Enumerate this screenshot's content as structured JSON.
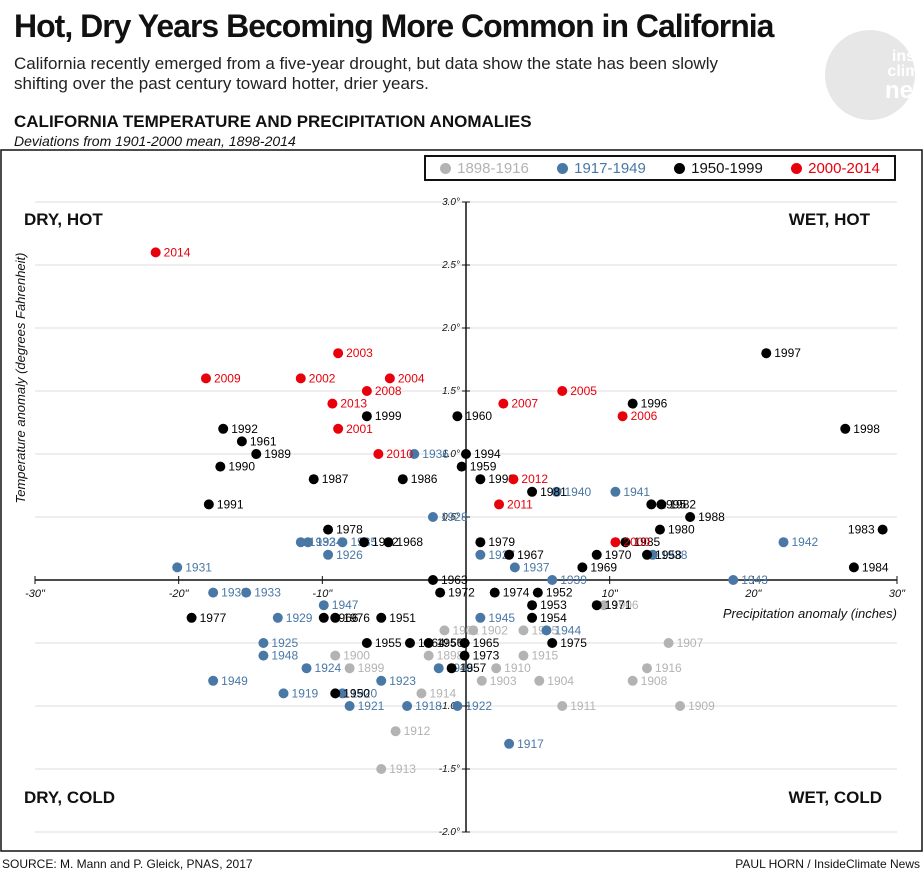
{
  "header": {
    "title": "Hot, Dry Years Becoming More Common in California",
    "subtitle": "California recently emerged from a five-year drought, but data show the state has been slowly shifting over the past century toward hotter, drier years.",
    "chart_title": "CALIFORNIA TEMPERATURE AND PRECIPITATION ANOMALIES",
    "chart_subtitle": "Deviations from 1901-2000 mean, 1898-2014"
  },
  "logo": {
    "line1": "inside",
    "line2": "climate",
    "line3": "news"
  },
  "footer": {
    "source": "SOURCE: M. Mann and P. Gleick, PNAS, 2017",
    "credit": "PAUL HORN / InsideClimate News"
  },
  "colors": {
    "1898-1916": "#b3b3b3",
    "1917-1949": "#4a78a6",
    "1950-1999": "#000000",
    "2000-2014": "#e8000b"
  },
  "chart_data": {
    "type": "scatter",
    "xlabel": "Precipitation anomaly (inches)",
    "ylabel": "Temperature anomaly (degrees Fahrenheit)",
    "xlim": [
      -30,
      30
    ],
    "ylim": [
      -2.0,
      3.0
    ],
    "x_ticks": [
      "-30\"",
      "-20\"",
      "-10\"",
      "10\"",
      "20\"",
      "30\""
    ],
    "y_ticks": [
      "3.0°",
      "2.5°",
      "2.0°",
      "1.5°",
      "1.0°",
      "0.5°",
      "-0.5°",
      "-1.0°",
      "-1.5°",
      "-2.0°"
    ],
    "grid": true,
    "legend_position": "top-right",
    "quadrants": {
      "top_left": "DRY, HOT",
      "top_right": "WET, HOT",
      "bottom_left": "DRY, COLD",
      "bottom_right": "WET, COLD"
    },
    "series": [
      {
        "name": "1898-1916",
        "points": [
          {
            "year": "1899",
            "x": -8.1,
            "y": -0.7
          },
          {
            "year": "1900",
            "x": -9.1,
            "y": -0.6
          },
          {
            "year": "1901",
            "x": -1.5,
            "y": -0.4
          },
          {
            "year": "1902",
            "x": 0.5,
            "y": -0.4
          },
          {
            "year": "1903",
            "x": 1.1,
            "y": -0.8
          },
          {
            "year": "1904",
            "x": 5.1,
            "y": -0.8
          },
          {
            "year": "1905",
            "x": 4.0,
            "y": -0.4
          },
          {
            "year": "1906",
            "x": 9.6,
            "y": -0.2
          },
          {
            "year": "1907",
            "x": 14.1,
            "y": -0.5
          },
          {
            "year": "1908",
            "x": 11.6,
            "y": -0.8
          },
          {
            "year": "1909",
            "x": 14.9,
            "y": -1.0
          },
          {
            "year": "1910",
            "x": 2.1,
            "y": -0.7
          },
          {
            "year": "1911",
            "x": 6.7,
            "y": -1.0
          },
          {
            "year": "1912",
            "x": -4.9,
            "y": -1.2
          },
          {
            "year": "1913",
            "x": -5.9,
            "y": -1.5
          },
          {
            "year": "1914",
            "x": -3.1,
            "y": -0.9
          },
          {
            "year": "1915",
            "x": 4.0,
            "y": -0.6
          },
          {
            "year": "1916",
            "x": 12.6,
            "y": -0.7
          },
          {
            "year": "1898",
            "x": -2.6,
            "y": -0.6
          }
        ]
      },
      {
        "name": "1917-1949",
        "points": [
          {
            "year": "1917",
            "x": 3.0,
            "y": -1.3
          },
          {
            "year": "1918",
            "x": -4.1,
            "y": -1.0
          },
          {
            "year": "1919",
            "x": -12.7,
            "y": -0.9
          },
          {
            "year": "1920",
            "x": -8.6,
            "y": -0.9
          },
          {
            "year": "1921",
            "x": -8.1,
            "y": -1.0
          },
          {
            "year": "1922",
            "x": -0.6,
            "y": -1.0
          },
          {
            "year": "1923",
            "x": -5.9,
            "y": -0.8
          },
          {
            "year": "1924",
            "x": -11.1,
            "y": -0.7
          },
          {
            "year": "1925",
            "x": -14.1,
            "y": -0.5
          },
          {
            "year": "1926",
            "x": -9.6,
            "y": 0.2
          },
          {
            "year": "1927",
            "x": 1.0,
            "y": 0.2
          },
          {
            "year": "1928",
            "x": -2.3,
            "y": 0.5
          },
          {
            "year": "1929",
            "x": -13.1,
            "y": -0.3
          },
          {
            "year": "1930",
            "x": -17.6,
            "y": -0.1
          },
          {
            "year": "1931",
            "x": -20.1,
            "y": 0.1
          },
          {
            "year": "1932",
            "x": -11.5,
            "y": 0.3
          },
          {
            "year": "1933",
            "x": -15.3,
            "y": -0.1
          },
          {
            "year": "1934",
            "x": -11.0,
            "y": 0.3
          },
          {
            "year": "1935",
            "x": -8.6,
            "y": 0.3
          },
          {
            "year": "1936",
            "x": -3.6,
            "y": 1.0
          },
          {
            "year": "1937",
            "x": 3.4,
            "y": 0.1
          },
          {
            "year": "1938",
            "x": 13.0,
            "y": 0.2
          },
          {
            "year": "1939",
            "x": 6.0,
            "y": 0.0
          },
          {
            "year": "1940",
            "x": 6.3,
            "y": 0.7
          },
          {
            "year": "1941",
            "x": 10.4,
            "y": 0.7
          },
          {
            "year": "1942",
            "x": 22.1,
            "y": 0.3
          },
          {
            "year": "1943",
            "x": 18.6,
            "y": 0.0
          },
          {
            "year": "1944",
            "x": 5.6,
            "y": -0.4
          },
          {
            "year": "1945",
            "x": 1.0,
            "y": -0.3
          },
          {
            "year": "1946",
            "x": -1.9,
            "y": -0.7
          },
          {
            "year": "1947",
            "x": -9.9,
            "y": -0.2
          },
          {
            "year": "1948",
            "x": -14.1,
            "y": -0.6
          },
          {
            "year": "1949",
            "x": -17.6,
            "y": -0.8
          }
        ]
      },
      {
        "name": "1950-1999",
        "points": [
          {
            "year": "1950",
            "x": -9.1,
            "y": -0.9
          },
          {
            "year": "1951",
            "x": -5.9,
            "y": -0.3
          },
          {
            "year": "1952",
            "x": 5.0,
            "y": -0.1
          },
          {
            "year": "1953",
            "x": 4.6,
            "y": -0.2
          },
          {
            "year": "1954",
            "x": 4.6,
            "y": -0.3
          },
          {
            "year": "1955",
            "x": -6.9,
            "y": -0.5
          },
          {
            "year": "1956",
            "x": -2.6,
            "y": -0.5
          },
          {
            "year": "1957",
            "x": -1.0,
            "y": -0.7
          },
          {
            "year": "1958",
            "x": 12.6,
            "y": 0.2
          },
          {
            "year": "1959",
            "x": -0.3,
            "y": 0.9
          },
          {
            "year": "1960",
            "x": -0.6,
            "y": 1.3
          },
          {
            "year": "1961",
            "x": -15.6,
            "y": 1.1
          },
          {
            "year": "1962",
            "x": -7.1,
            "y": 0.3
          },
          {
            "year": "1963",
            "x": -2.3,
            "y": 0.0
          },
          {
            "year": "1964",
            "x": -3.9,
            "y": -0.5
          },
          {
            "year": "1965",
            "x": -0.1,
            "y": -0.5
          },
          {
            "year": "1966",
            "x": -9.9,
            "y": -0.3
          },
          {
            "year": "1967",
            "x": 3.0,
            "y": 0.2
          },
          {
            "year": "1968",
            "x": -5.4,
            "y": 0.3
          },
          {
            "year": "1969",
            "x": 8.1,
            "y": 0.1
          },
          {
            "year": "1970",
            "x": 9.1,
            "y": 0.2
          },
          {
            "year": "1971",
            "x": 9.1,
            "y": -0.2
          },
          {
            "year": "1972",
            "x": -1.8,
            "y": -0.1
          },
          {
            "year": "1973",
            "x": -0.1,
            "y": -0.6
          },
          {
            "year": "1974",
            "x": 2.0,
            "y": -0.1
          },
          {
            "year": "1975",
            "x": 6.0,
            "y": -0.5
          },
          {
            "year": "1976",
            "x": -9.1,
            "y": -0.3
          },
          {
            "year": "1977",
            "x": -19.1,
            "y": -0.3
          },
          {
            "year": "1978",
            "x": -9.6,
            "y": 0.4
          },
          {
            "year": "1979",
            "x": 1.0,
            "y": 0.3
          },
          {
            "year": "1980",
            "x": 13.5,
            "y": 0.4
          },
          {
            "year": "1981",
            "x": 4.6,
            "y": 0.7
          },
          {
            "year": "1982",
            "x": 13.6,
            "y": 0.6
          },
          {
            "year": "1983",
            "x": 29.0,
            "y": 0.4
          },
          {
            "year": "1984",
            "x": 27.0,
            "y": 0.1
          },
          {
            "year": "1985",
            "x": 11.1,
            "y": 0.3
          },
          {
            "year": "1986",
            "x": -4.4,
            "y": 0.8
          },
          {
            "year": "1987",
            "x": -10.6,
            "y": 0.8
          },
          {
            "year": "1988",
            "x": 15.6,
            "y": 0.5
          },
          {
            "year": "1989",
            "x": -14.6,
            "y": 1.0
          },
          {
            "year": "1990",
            "x": -17.1,
            "y": 0.9
          },
          {
            "year": "1991",
            "x": -17.9,
            "y": 0.6
          },
          {
            "year": "1992",
            "x": -16.9,
            "y": 1.2
          },
          {
            "year": "1993",
            "x": 1.0,
            "y": 0.8
          },
          {
            "year": "1994",
            "x": 0.0,
            "y": 1.0
          },
          {
            "year": "1995",
            "x": 12.9,
            "y": 0.6
          },
          {
            "year": "1996",
            "x": 11.6,
            "y": 1.4
          },
          {
            "year": "1997",
            "x": 20.9,
            "y": 1.8
          },
          {
            "year": "1998",
            "x": 26.4,
            "y": 1.2
          },
          {
            "year": "1999",
            "x": -6.9,
            "y": 1.3
          }
        ]
      },
      {
        "name": "2000-2014",
        "points": [
          {
            "year": "2000",
            "x": 10.4,
            "y": 0.3
          },
          {
            "year": "2001",
            "x": -8.9,
            "y": 1.2
          },
          {
            "year": "2002",
            "x": -11.5,
            "y": 1.6
          },
          {
            "year": "2003",
            "x": -8.9,
            "y": 1.8
          },
          {
            "year": "2004",
            "x": -5.3,
            "y": 1.6
          },
          {
            "year": "2005",
            "x": 6.7,
            "y": 1.5
          },
          {
            "year": "2006",
            "x": 10.9,
            "y": 1.3
          },
          {
            "year": "2007",
            "x": 2.6,
            "y": 1.4
          },
          {
            "year": "2008",
            "x": -6.9,
            "y": 1.5
          },
          {
            "year": "2009",
            "x": -18.1,
            "y": 1.6
          },
          {
            "year": "2010",
            "x": -6.1,
            "y": 1.0
          },
          {
            "year": "2011",
            "x": 2.3,
            "y": 0.6
          },
          {
            "year": "2012",
            "x": 3.3,
            "y": 0.8
          },
          {
            "year": "2013",
            "x": -9.3,
            "y": 1.4
          },
          {
            "year": "2014",
            "x": -21.6,
            "y": 2.6
          }
        ]
      }
    ]
  }
}
